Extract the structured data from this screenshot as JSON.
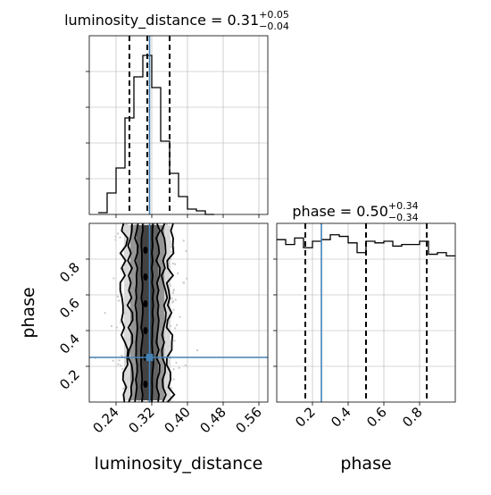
{
  "figure": {
    "type": "corner-plot",
    "colors": {
      "hist": "#000000",
      "truth": "#4682b4",
      "grid": "#b0b0b0",
      "density_dark": "#3c3c3c",
      "density_mid": "#8a8a8a",
      "density_light": "#d4d4d4",
      "scatter": "#c8c8c8"
    }
  },
  "chart_data": [
    {
      "type": "histogram",
      "id": "lum-hist",
      "title": "luminosity_distance = 0.31",
      "title_parts": {
        "base": "luminosity_distance = 0.31",
        "sup": "+0.05",
        "sub": "−0.04"
      },
      "xlim": [
        0.18,
        0.58
      ],
      "ylim": [
        0,
        1
      ],
      "bins": [
        0.2,
        0.22,
        0.24,
        0.26,
        0.28,
        0.3,
        0.32,
        0.34,
        0.36,
        0.38,
        0.4,
        0.42,
        0.44,
        0.46
      ],
      "heights": [
        0.01,
        0.12,
        0.26,
        0.54,
        0.77,
        0.89,
        0.71,
        0.41,
        0.23,
        0.1,
        0.03,
        0.02,
        0.0
      ],
      "quantiles": [
        0.27,
        0.31,
        0.36
      ],
      "truth": 0.315,
      "grid": true
    },
    {
      "type": "histogram",
      "id": "phase-hist",
      "title": "phase = 0.50",
      "title_parts": {
        "base": "phase = 0.50",
        "sup": "+0.34",
        "sub": "−0.34"
      },
      "xlabel": "phase",
      "xticks": [
        "0.2",
        "0.4",
        "0.6",
        "0.8"
      ],
      "xtick_values": [
        0.2,
        0.4,
        0.6,
        0.8
      ],
      "xlim": [
        0,
        1
      ],
      "ylim": [
        0,
        1.1
      ],
      "bins": [
        0,
        0.05,
        0.1,
        0.15,
        0.2,
        0.25,
        0.3,
        0.35,
        0.4,
        0.45,
        0.5,
        0.55,
        0.6,
        0.65,
        0.7,
        0.75,
        0.8,
        0.85,
        0.9,
        0.95,
        1.0
      ],
      "heights": [
        1.0,
        0.97,
        1.01,
        0.95,
        0.99,
        1.0,
        1.03,
        1.02,
        0.98,
        0.92,
        0.99,
        0.98,
        0.99,
        0.96,
        0.97,
        0.97,
        0.99,
        0.91,
        0.92,
        0.9
      ],
      "quantiles": [
        0.16,
        0.5,
        0.84
      ],
      "truth": 0.25,
      "grid": true
    },
    {
      "type": "density2d",
      "id": "joint",
      "xlabel": "luminosity_distance",
      "ylabel": "phase",
      "xticks": [
        "0.24",
        "0.32",
        "0.40",
        "0.48",
        "0.56"
      ],
      "xtick_values": [
        0.24,
        0.32,
        0.4,
        0.48,
        0.56
      ],
      "yticks": [
        "0.2",
        "0.4",
        "0.6",
        "0.8"
      ],
      "ytick_values": [
        0.2,
        0.4,
        0.6,
        0.8
      ],
      "xlim": [
        0.18,
        0.58
      ],
      "ylim": [
        0,
        1
      ],
      "center_x": 0.31,
      "sigma_x": 0.025,
      "contour_levels_x_halfwidth": [
        0.012,
        0.024,
        0.038,
        0.052
      ],
      "truth": {
        "x": 0.315,
        "y": 0.25
      },
      "grid": true
    }
  ]
}
